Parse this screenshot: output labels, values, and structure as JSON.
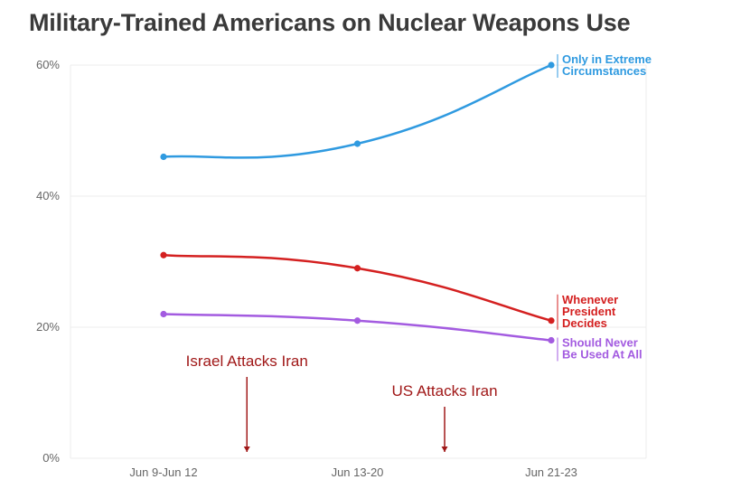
{
  "title": "Military-Trained Americans on Nuclear Weapons Use",
  "chart_data": {
    "type": "line",
    "title": "Military-Trained Americans on Nuclear Weapons Use",
    "categories": [
      "Jun 9-Jun 12",
      "Jun 13-20",
      "Jun 21-23"
    ],
    "ylim": [
      0,
      60
    ],
    "y_ticks": [
      "0%",
      "20%",
      "40%",
      "60%"
    ],
    "y_tick_values": [
      0,
      20,
      40,
      60
    ],
    "grid": true,
    "series": [
      {
        "name_lines": [
          "Only in Extreme",
          "Circumstances"
        ],
        "values": [
          46,
          48,
          60
        ],
        "color": "#2f9ae0"
      },
      {
        "name_lines": [
          "Whenever",
          "President",
          "Decides"
        ],
        "values": [
          31,
          29,
          21
        ],
        "color": "#d42020"
      },
      {
        "name_lines": [
          "Should Never",
          "Be Used At All"
        ],
        "values": [
          22,
          21,
          18
        ],
        "color": "#a35be0"
      }
    ],
    "annotations": [
      {
        "text": "Israel Attacks Iran",
        "category_pos": 1.43
      },
      {
        "text": "US Attacks Iran",
        "category_pos": 2.45
      }
    ],
    "annotation_color": "#a01818"
  }
}
